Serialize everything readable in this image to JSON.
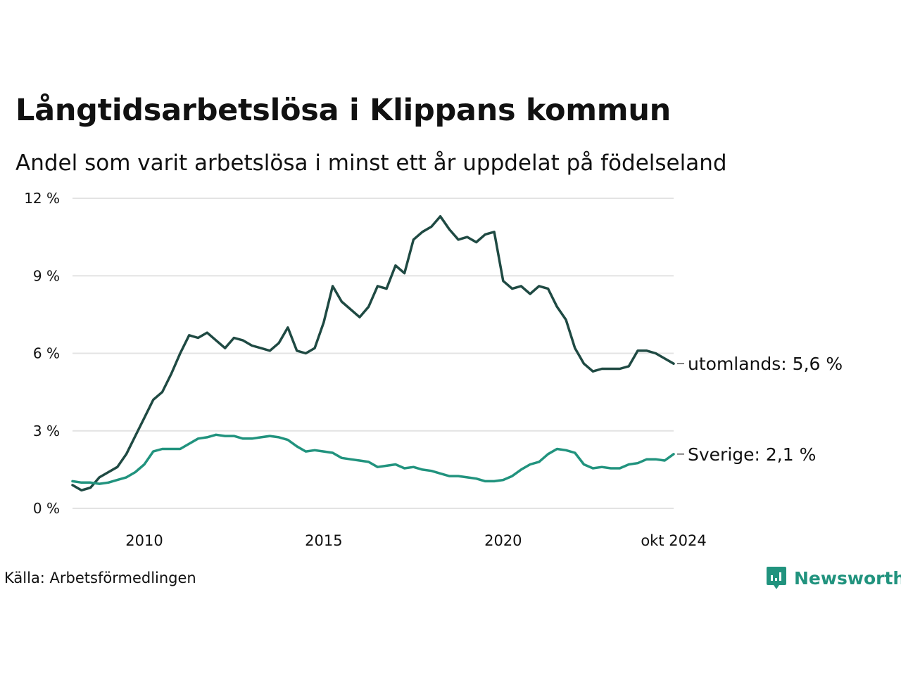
{
  "header": {
    "title": "Långtidsarbetslösa i Klippans kommun",
    "subtitle": "Andel som varit arbetslösa i minst ett år uppdelat på födelseland"
  },
  "footer": {
    "source": "Källa: Arbetsförmedlingen",
    "brand": "Newsworthy",
    "brand_color": "#21937e"
  },
  "chart_data": {
    "type": "line",
    "title": "Långtidsarbetslösa i Klippans kommun",
    "subtitle": "Andel som varit arbetslösa i minst ett år uppdelat på födelseland",
    "xlabel": "",
    "ylabel": "",
    "x_ticks": [
      {
        "x": 2010,
        "label": "2010"
      },
      {
        "x": 2015,
        "label": "2015"
      },
      {
        "x": 2020,
        "label": "2020"
      },
      {
        "x": 2024.75,
        "label": "okt 2024"
      }
    ],
    "y_ticks": [
      {
        "y": 0,
        "label": "0 %"
      },
      {
        "y": 3,
        "label": "3 %"
      },
      {
        "y": 6,
        "label": "6 %"
      },
      {
        "y": 9,
        "label": "9 %"
      },
      {
        "y": 12,
        "label": "12 %"
      }
    ],
    "xlim": [
      2008.0,
      2024.75
    ],
    "ylim": [
      0,
      12
    ],
    "grid": true,
    "legend": "end-of-line labels",
    "series": [
      {
        "name": "utomlands",
        "end_label": "utomlands: 5,6 %",
        "color": "#1f4a43",
        "points": [
          [
            2008.0,
            0.9
          ],
          [
            2008.25,
            0.7
          ],
          [
            2008.5,
            0.8
          ],
          [
            2008.75,
            1.2
          ],
          [
            2009.0,
            1.4
          ],
          [
            2009.25,
            1.6
          ],
          [
            2009.5,
            2.1
          ],
          [
            2009.75,
            2.8
          ],
          [
            2010.0,
            3.5
          ],
          [
            2010.25,
            4.2
          ],
          [
            2010.5,
            4.5
          ],
          [
            2010.75,
            5.2
          ],
          [
            2011.0,
            6.0
          ],
          [
            2011.25,
            6.7
          ],
          [
            2011.5,
            6.6
          ],
          [
            2011.75,
            6.8
          ],
          [
            2012.0,
            6.5
          ],
          [
            2012.25,
            6.2
          ],
          [
            2012.5,
            6.6
          ],
          [
            2012.75,
            6.5
          ],
          [
            2013.0,
            6.3
          ],
          [
            2013.25,
            6.2
          ],
          [
            2013.5,
            6.1
          ],
          [
            2013.75,
            6.4
          ],
          [
            2014.0,
            7.0
          ],
          [
            2014.25,
            6.1
          ],
          [
            2014.5,
            6.0
          ],
          [
            2014.75,
            6.2
          ],
          [
            2015.0,
            7.2
          ],
          [
            2015.25,
            8.6
          ],
          [
            2015.5,
            8.0
          ],
          [
            2015.75,
            7.7
          ],
          [
            2016.0,
            7.4
          ],
          [
            2016.25,
            7.8
          ],
          [
            2016.5,
            8.6
          ],
          [
            2016.75,
            8.5
          ],
          [
            2017.0,
            9.4
          ],
          [
            2017.25,
            9.1
          ],
          [
            2017.5,
            10.4
          ],
          [
            2017.75,
            10.7
          ],
          [
            2018.0,
            10.9
          ],
          [
            2018.25,
            11.3
          ],
          [
            2018.5,
            10.8
          ],
          [
            2018.75,
            10.4
          ],
          [
            2019.0,
            10.5
          ],
          [
            2019.25,
            10.3
          ],
          [
            2019.5,
            10.6
          ],
          [
            2019.75,
            10.7
          ],
          [
            2020.0,
            8.8
          ],
          [
            2020.25,
            8.5
          ],
          [
            2020.5,
            8.6
          ],
          [
            2020.75,
            8.3
          ],
          [
            2021.0,
            8.6
          ],
          [
            2021.25,
            8.5
          ],
          [
            2021.5,
            7.8
          ],
          [
            2021.75,
            7.3
          ],
          [
            2022.0,
            6.2
          ],
          [
            2022.25,
            5.6
          ],
          [
            2022.5,
            5.3
          ],
          [
            2022.75,
            5.4
          ],
          [
            2023.0,
            5.4
          ],
          [
            2023.25,
            5.4
          ],
          [
            2023.5,
            5.5
          ],
          [
            2023.75,
            6.1
          ],
          [
            2024.0,
            6.1
          ],
          [
            2024.25,
            6.0
          ],
          [
            2024.5,
            5.8
          ],
          [
            2024.75,
            5.6
          ]
        ]
      },
      {
        "name": "Sverige",
        "end_label": "Sverige: 2,1 %",
        "color": "#21937e",
        "points": [
          [
            2008.0,
            1.05
          ],
          [
            2008.25,
            1.0
          ],
          [
            2008.5,
            1.0
          ],
          [
            2008.75,
            0.95
          ],
          [
            2009.0,
            1.0
          ],
          [
            2009.25,
            1.1
          ],
          [
            2009.5,
            1.2
          ],
          [
            2009.75,
            1.4
          ],
          [
            2010.0,
            1.7
          ],
          [
            2010.25,
            2.2
          ],
          [
            2010.5,
            2.3
          ],
          [
            2010.75,
            2.3
          ],
          [
            2011.0,
            2.3
          ],
          [
            2011.25,
            2.5
          ],
          [
            2011.5,
            2.7
          ],
          [
            2011.75,
            2.75
          ],
          [
            2012.0,
            2.85
          ],
          [
            2012.25,
            2.8
          ],
          [
            2012.5,
            2.8
          ],
          [
            2012.75,
            2.7
          ],
          [
            2013.0,
            2.7
          ],
          [
            2013.25,
            2.75
          ],
          [
            2013.5,
            2.8
          ],
          [
            2013.75,
            2.75
          ],
          [
            2014.0,
            2.65
          ],
          [
            2014.25,
            2.4
          ],
          [
            2014.5,
            2.2
          ],
          [
            2014.75,
            2.25
          ],
          [
            2015.0,
            2.2
          ],
          [
            2015.25,
            2.15
          ],
          [
            2015.5,
            1.95
          ],
          [
            2015.75,
            1.9
          ],
          [
            2016.0,
            1.85
          ],
          [
            2016.25,
            1.8
          ],
          [
            2016.5,
            1.6
          ],
          [
            2016.75,
            1.65
          ],
          [
            2017.0,
            1.7
          ],
          [
            2017.25,
            1.55
          ],
          [
            2017.5,
            1.6
          ],
          [
            2017.75,
            1.5
          ],
          [
            2018.0,
            1.45
          ],
          [
            2018.25,
            1.35
          ],
          [
            2018.5,
            1.25
          ],
          [
            2018.75,
            1.25
          ],
          [
            2019.0,
            1.2
          ],
          [
            2019.25,
            1.15
          ],
          [
            2019.5,
            1.05
          ],
          [
            2019.75,
            1.05
          ],
          [
            2020.0,
            1.1
          ],
          [
            2020.25,
            1.25
          ],
          [
            2020.5,
            1.5
          ],
          [
            2020.75,
            1.7
          ],
          [
            2021.0,
            1.8
          ],
          [
            2021.25,
            2.1
          ],
          [
            2021.5,
            2.3
          ],
          [
            2021.75,
            2.25
          ],
          [
            2022.0,
            2.15
          ],
          [
            2022.25,
            1.7
          ],
          [
            2022.5,
            1.55
          ],
          [
            2022.75,
            1.6
          ],
          [
            2023.0,
            1.55
          ],
          [
            2023.25,
            1.55
          ],
          [
            2023.5,
            1.7
          ],
          [
            2023.75,
            1.75
          ],
          [
            2024.0,
            1.9
          ],
          [
            2024.25,
            1.9
          ],
          [
            2024.5,
            1.85
          ],
          [
            2024.75,
            2.1
          ]
        ]
      }
    ]
  }
}
